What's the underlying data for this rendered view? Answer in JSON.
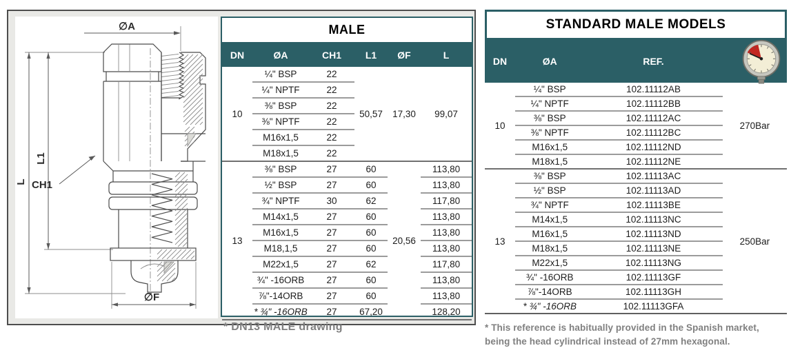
{
  "colors": {
    "teal": "#2b5f66",
    "panel_bg": "#e9e9e6",
    "separator": "#9b9b9b",
    "dark_line": "#6f6f6f",
    "muted_text": "#7f7f7f"
  },
  "drawing": {
    "description": "male coupling cross-section drawing",
    "labels": {
      "dia_a": "∅A",
      "l1": "L1",
      "ch1": "CH1",
      "l": "L",
      "dia_f": "∅F"
    }
  },
  "male_table": {
    "title": "MALE",
    "headers": [
      "DN",
      "ØA",
      "CH1",
      "L1",
      "ØF",
      "L"
    ],
    "groups": [
      {
        "dn": "10",
        "l1": "50,57",
        "of": "17,30",
        "l": "99,07",
        "rows": [
          {
            "oa": "¼\" BSP",
            "ch1": "22"
          },
          {
            "oa": "¼\" NPTF",
            "ch1": "22"
          },
          {
            "oa": "⅜\" BSP",
            "ch1": "22"
          },
          {
            "oa": "⅜\" NPTF",
            "ch1": "22"
          },
          {
            "oa": "M16x1,5",
            "ch1": "22"
          },
          {
            "oa": "M18x1,5",
            "ch1": "22"
          }
        ]
      },
      {
        "dn": "13",
        "of": "20,56",
        "rows": [
          {
            "oa": "⅜\" BSP",
            "ch1": "27",
            "l1": "60",
            "l": "113,80"
          },
          {
            "oa": "½\" BSP",
            "ch1": "27",
            "l1": "60",
            "l": "113,80"
          },
          {
            "oa": "¾\" NPTF",
            "ch1": "30",
            "l1": "62",
            "l": "117,80"
          },
          {
            "oa": "M14x1,5",
            "ch1": "27",
            "l1": "60",
            "l": "113,80"
          },
          {
            "oa": "M16x1,5",
            "ch1": "27",
            "l1": "60",
            "l": "113,80"
          },
          {
            "oa": "M18,1,5",
            "ch1": "27",
            "l1": "60",
            "l": "113,80"
          },
          {
            "oa": "M22x1,5",
            "ch1": "27",
            "l1": "62",
            "l": "117,80"
          },
          {
            "oa": "¾\" -16ORB",
            "ch1": "27",
            "l1": "60",
            "l": "113,80"
          },
          {
            "oa": "⅞\"-14ORB",
            "ch1": "27",
            "l1": "60",
            "l": "113,80"
          },
          {
            "oa": "* ¾\" -16ORB",
            "ch1": "27",
            "l1": "67,20",
            "l": "128,20",
            "italic": true
          }
        ]
      }
    ],
    "note": "* DN13 MALE drawing"
  },
  "models_table": {
    "title": "STANDARD MALE MODELS",
    "headers": [
      "DN",
      "ØA",
      "REF."
    ],
    "gauge_icon": "pressure-gauge",
    "groups": [
      {
        "dn": "10",
        "pressure": "270Bar",
        "rows": [
          {
            "oa": "¼\" BSP",
            "ref": "102.11112AB"
          },
          {
            "oa": "¼\" NPTF",
            "ref": "102.11112BB"
          },
          {
            "oa": "⅜\" BSP",
            "ref": "102.11112AC"
          },
          {
            "oa": "⅜\" NPTF",
            "ref": "102.11112BC"
          },
          {
            "oa": "M16x1,5",
            "ref": "102.11112ND"
          },
          {
            "oa": "M18x1,5",
            "ref": "102.11112NE"
          }
        ]
      },
      {
        "dn": "13",
        "pressure": "250Bar",
        "rows": [
          {
            "oa": "⅜\" BSP",
            "ref": "102.11113AC"
          },
          {
            "oa": "½\" BSP",
            "ref": "102.11113AD"
          },
          {
            "oa": "¾\" NPTF",
            "ref": "102.11113BE"
          },
          {
            "oa": "M14x1,5",
            "ref": "102.11113NC"
          },
          {
            "oa": "M16x1,5",
            "ref": "102.11113ND"
          },
          {
            "oa": "M18x1,5",
            "ref": "102.11113NE"
          },
          {
            "oa": "M22x1,5",
            "ref": "102.11113NG"
          },
          {
            "oa": "¾\" -16ORB",
            "ref": "102.11113GF"
          },
          {
            "oa": "⅞\"-14ORB",
            "ref": "102.11113GH"
          },
          {
            "oa": "* ¾\" -16ORB",
            "ref": "102.11113GFA",
            "italic": true
          }
        ]
      }
    ],
    "footnote": "* This reference is habitually provided in the Spanish market, being the head cylindrical instead of 27mm hexagonal."
  }
}
